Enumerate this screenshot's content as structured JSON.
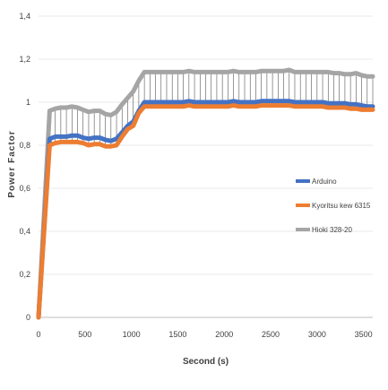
{
  "chart_data": {
    "type": "line",
    "title": "",
    "xlabel": "Second (s)",
    "ylabel": "Power Factor",
    "xlim": [
      0,
      3600
    ],
    "ylim": [
      0,
      1.4
    ],
    "xticks": [
      0,
      500,
      1000,
      1500,
      2000,
      2500,
      3000,
      3500
    ],
    "xtick_labels": [
      "0",
      "500",
      "1000",
      "1500",
      "2000",
      "2500",
      "3000",
      "3500"
    ],
    "yticks": [
      0,
      0.2,
      0.4,
      0.6,
      0.8,
      1,
      1.2,
      1.4
    ],
    "ytick_labels": [
      "0",
      "0,2",
      "0,4",
      "0,6",
      "0,8",
      "1",
      "1,2",
      "1,4"
    ],
    "grid": "horizontal",
    "legend_position": "right",
    "series": [
      {
        "name": "Arduino",
        "color": "#4472c4",
        "x": [
          0,
          120,
          180,
          240,
          300,
          360,
          420,
          480,
          540,
          600,
          660,
          720,
          780,
          840,
          900,
          960,
          1020,
          1080,
          1140,
          1200,
          1260,
          1320,
          1380,
          1440,
          1500,
          1560,
          1620,
          1680,
          1740,
          1800,
          1860,
          1920,
          1980,
          2040,
          2100,
          2160,
          2220,
          2280,
          2340,
          2400,
          2460,
          2520,
          2580,
          2640,
          2700,
          2760,
          2820,
          2880,
          2940,
          3000,
          3060,
          3120,
          3180,
          3240,
          3300,
          3360,
          3420,
          3480,
          3540,
          3600
        ],
        "values": [
          0,
          0.83,
          0.84,
          0.84,
          0.84,
          0.845,
          0.845,
          0.835,
          0.83,
          0.835,
          0.835,
          0.825,
          0.82,
          0.83,
          0.86,
          0.89,
          0.91,
          0.96,
          1.0,
          1.0,
          1.0,
          1.0,
          1.0,
          1.0,
          1.0,
          1.0,
          1.005,
          1.0,
          1.0,
          1.0,
          1.0,
          1.0,
          1.0,
          1.0,
          1.005,
          1.0,
          1.0,
          1.0,
          1.0,
          1.005,
          1.005,
          1.005,
          1.005,
          1.005,
          1.005,
          1.0,
          1.0,
          1.0,
          1.0,
          1.0,
          1.0,
          0.995,
          0.995,
          0.995,
          0.995,
          0.99,
          0.99,
          0.985,
          0.98,
          0.98
        ]
      },
      {
        "name": "Kyoritsu kew 6315",
        "color": "#ed7d31",
        "x": [
          0,
          120,
          180,
          240,
          300,
          360,
          420,
          480,
          540,
          600,
          660,
          720,
          780,
          840,
          900,
          960,
          1020,
          1080,
          1140,
          1200,
          1260,
          1320,
          1380,
          1440,
          1500,
          1560,
          1620,
          1680,
          1740,
          1800,
          1860,
          1920,
          1980,
          2040,
          2100,
          2160,
          2220,
          2280,
          2340,
          2400,
          2460,
          2520,
          2580,
          2640,
          2700,
          2760,
          2820,
          2880,
          2940,
          3000,
          3060,
          3120,
          3180,
          3240,
          3300,
          3360,
          3420,
          3480,
          3540,
          3600
        ],
        "values": [
          0,
          0.8,
          0.81,
          0.815,
          0.815,
          0.815,
          0.815,
          0.81,
          0.8,
          0.805,
          0.805,
          0.795,
          0.795,
          0.8,
          0.84,
          0.875,
          0.89,
          0.95,
          0.98,
          0.98,
          0.98,
          0.98,
          0.98,
          0.98,
          0.98,
          0.98,
          0.985,
          0.98,
          0.98,
          0.98,
          0.98,
          0.98,
          0.98,
          0.98,
          0.985,
          0.98,
          0.98,
          0.98,
          0.98,
          0.985,
          0.985,
          0.985,
          0.985,
          0.985,
          0.985,
          0.98,
          0.98,
          0.98,
          0.98,
          0.98,
          0.98,
          0.975,
          0.975,
          0.975,
          0.975,
          0.97,
          0.97,
          0.965,
          0.965,
          0.965
        ]
      },
      {
        "name": "Hioki 328-20",
        "color": "#a5a5a5",
        "x": [
          0,
          120,
          180,
          240,
          300,
          360,
          420,
          480,
          540,
          600,
          660,
          720,
          780,
          840,
          900,
          960,
          1020,
          1080,
          1140,
          1200,
          1260,
          1320,
          1380,
          1440,
          1500,
          1560,
          1620,
          1680,
          1740,
          1800,
          1860,
          1920,
          1980,
          2040,
          2100,
          2160,
          2220,
          2280,
          2340,
          2400,
          2460,
          2520,
          2580,
          2640,
          2700,
          2760,
          2820,
          2880,
          2940,
          3000,
          3060,
          3120,
          3180,
          3240,
          3300,
          3360,
          3420,
          3480,
          3540,
          3600
        ],
        "values": [
          0,
          0.96,
          0.97,
          0.975,
          0.975,
          0.98,
          0.975,
          0.965,
          0.955,
          0.96,
          0.96,
          0.945,
          0.94,
          0.955,
          0.99,
          1.02,
          1.05,
          1.1,
          1.14,
          1.14,
          1.14,
          1.14,
          1.14,
          1.14,
          1.14,
          1.14,
          1.145,
          1.14,
          1.14,
          1.14,
          1.14,
          1.14,
          1.14,
          1.14,
          1.145,
          1.14,
          1.14,
          1.14,
          1.14,
          1.145,
          1.145,
          1.145,
          1.145,
          1.145,
          1.15,
          1.14,
          1.14,
          1.14,
          1.14,
          1.14,
          1.14,
          1.14,
          1.135,
          1.135,
          1.13,
          1.13,
          1.135,
          1.125,
          1.12,
          1.12
        ]
      }
    ]
  }
}
